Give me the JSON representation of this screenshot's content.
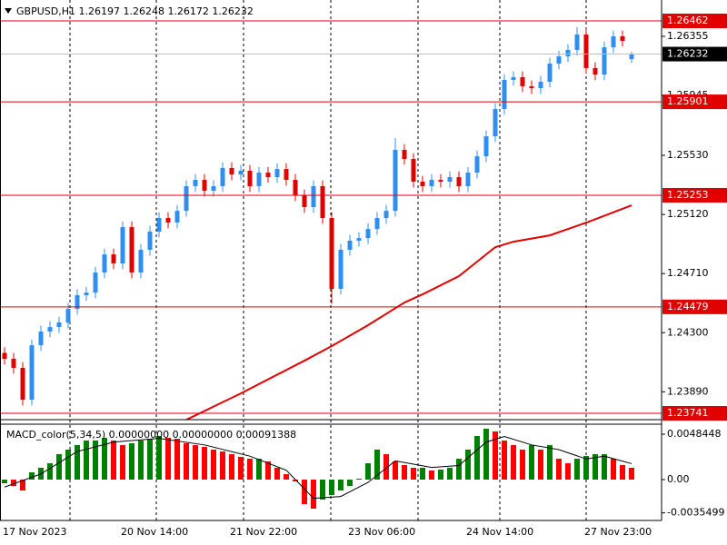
{
  "chart_data": [
    {
      "type": "candlestick",
      "title": "GBPUSD,H1  1.26197 1.26248 1.26172 1.26232",
      "categories": [
        "17 Nov 2023",
        null,
        null,
        null,
        null,
        null,
        null,
        null,
        null,
        null,
        null,
        null,
        null,
        "20 Nov 14:00",
        null,
        null,
        null,
        null,
        null,
        null,
        null,
        null,
        null,
        null,
        null,
        "21 Nov 22:00",
        null,
        null,
        null,
        null,
        null,
        null,
        null,
        null,
        null,
        null,
        null,
        null,
        "23 Nov 06:00",
        null,
        null,
        null,
        null,
        null,
        null,
        null,
        null,
        null,
        null,
        null,
        null,
        "24 Nov 14:00",
        null,
        null,
        null,
        null,
        null,
        null,
        null,
        null,
        null,
        null,
        null,
        null,
        "27 Nov 23:00",
        null,
        null,
        null,
        null,
        null
      ],
      "open": [
        1.2416,
        1.24119,
        1.24056,
        1.23835,
        1.24213,
        1.24308,
        1.24339,
        1.24371,
        1.24465,
        1.2456,
        1.24578,
        1.24717,
        1.24843,
        1.2478,
        1.25032,
        1.24717,
        1.24875,
        1.25001,
        1.25095,
        1.25064,
        1.25145,
        1.25316,
        1.2536,
        1.25284,
        1.25316,
        1.25442,
        1.25397,
        1.25423,
        1.25316,
        1.2541,
        1.25379,
        1.25435,
        1.2536,
        1.25253,
        1.25171,
        1.25316,
        1.25095,
        1.24604,
        1.24875,
        1.24938,
        1.24956,
        1.25019,
        1.25095,
        1.25145,
        1.25568,
        1.25505,
        1.25347,
        1.25316,
        1.2536,
        1.25347,
        1.25379,
        1.25316,
        1.2541,
        1.25523,
        1.25662,
        1.25851,
        1.26053,
        1.26072,
        1.26009,
        1.25996,
        1.2604,
        1.26166,
        1.26216,
        1.26261,
        1.26368,
        1.26135,
        1.2609,
        1.26279,
        1.26355,
        1.26197
      ],
      "high": [
        1.242,
        1.24159,
        1.24096,
        1.24253,
        1.24348,
        1.24379,
        1.24411,
        1.24505,
        1.246,
        1.24618,
        1.24757,
        1.24883,
        1.24883,
        1.25072,
        1.25072,
        1.24915,
        1.25041,
        1.25135,
        1.25135,
        1.25185,
        1.25356,
        1.254,
        1.254,
        1.25356,
        1.25482,
        1.25482,
        1.25463,
        1.25463,
        1.2545,
        1.2545,
        1.25475,
        1.25475,
        1.254,
        1.25293,
        1.25356,
        1.25356,
        1.25135,
        1.24915,
        1.24978,
        1.24996,
        1.25059,
        1.25135,
        1.25185,
        1.2565,
        1.25608,
        1.25545,
        1.25387,
        1.254,
        1.254,
        1.25419,
        1.25419,
        1.2545,
        1.25563,
        1.25702,
        1.25891,
        1.26093,
        1.26112,
        1.26112,
        1.26049,
        1.2608,
        1.26206,
        1.26256,
        1.26301,
        1.2642,
        1.26408,
        1.26175,
        1.26319,
        1.26395,
        1.26395,
        1.26248
      ],
      "low": [
        1.24079,
        1.24016,
        1.23795,
        1.23795,
        1.24173,
        1.24268,
        1.24299,
        1.24331,
        1.24425,
        1.2452,
        1.24538,
        1.24677,
        1.2474,
        1.2474,
        1.24677,
        1.24677,
        1.24835,
        1.24961,
        1.25024,
        1.25024,
        1.25105,
        1.25276,
        1.25244,
        1.25244,
        1.25276,
        1.25357,
        1.25357,
        1.25276,
        1.25276,
        1.25339,
        1.25339,
        1.2532,
        1.25213,
        1.25131,
        1.25131,
        1.25055,
        1.245,
        1.24564,
        1.24835,
        1.24898,
        1.24916,
        1.24979,
        1.25055,
        1.25105,
        1.25465,
        1.25307,
        1.25276,
        1.25276,
        1.25307,
        1.25307,
        1.25276,
        1.25276,
        1.2537,
        1.25483,
        1.25622,
        1.25811,
        1.26013,
        1.25969,
        1.25956,
        1.25956,
        1.26,
        1.26126,
        1.26176,
        1.26221,
        1.26095,
        1.2605,
        1.2605,
        1.26239,
        1.26284,
        1.26172
      ],
      "close": [
        1.24119,
        1.24056,
        1.23835,
        1.24213,
        1.24308,
        1.24339,
        1.24371,
        1.24465,
        1.2456,
        1.24578,
        1.24717,
        1.24843,
        1.2478,
        1.25032,
        1.24717,
        1.24875,
        1.25001,
        1.25095,
        1.25064,
        1.25145,
        1.25316,
        1.2536,
        1.25284,
        1.25316,
        1.25442,
        1.25397,
        1.25423,
        1.25316,
        1.2541,
        1.25379,
        1.25435,
        1.2536,
        1.25253,
        1.25171,
        1.25316,
        1.25095,
        1.24604,
        1.24875,
        1.24938,
        1.24956,
        1.25019,
        1.25095,
        1.25145,
        1.25568,
        1.25505,
        1.25347,
        1.25316,
        1.2536,
        1.25347,
        1.25379,
        1.25316,
        1.2541,
        1.25523,
        1.25662,
        1.25851,
        1.26053,
        1.26072,
        1.26009,
        1.25996,
        1.2604,
        1.26166,
        1.26216,
        1.26261,
        1.26368,
        1.26135,
        1.2609,
        1.26279,
        1.26355,
        1.26324,
        1.26232
      ],
      "up_color": "#2f8ff0",
      "down_color": "#e00000",
      "ma": {
        "color": "#e00000",
        "x": [
          20,
          26,
          33,
          36,
          40,
          44,
          46,
          50,
          54,
          56,
          60,
          64,
          69
        ],
        "values": [
          1.23696,
          1.23879,
          1.24106,
          1.24207,
          1.24352,
          1.24509,
          1.24566,
          1.24692,
          1.24893,
          1.24931,
          1.24975,
          1.25063,
          1.25183
        ]
      },
      "levels": [
        1.26462,
        1.25901,
        1.25253,
        1.24479,
        1.23741
      ],
      "level_color": "#e00000",
      "current_price": 1.26232,
      "ylim": [
        1.23697,
        1.26607
      ],
      "yticks": [
        {
          "value": 1.2389,
          "label": "1.23890"
        },
        {
          "value": 1.243,
          "label": "1.24300"
        },
        {
          "value": 1.2471,
          "label": "1.24710"
        },
        {
          "value": 1.2512,
          "label": "1.25120"
        },
        {
          "value": 1.2553,
          "label": "1.25530"
        },
        1.25945,
        1.26355
      ]
    },
    {
      "type": "macd",
      "title": "MACD_color(5,34,5) 0.00000000 0.00000000 0.00091388",
      "values": [
        -0.00039,
        -0.00068,
        -0.00116,
        0.00078,
        0.00126,
        0.00174,
        0.00271,
        0.0032,
        0.00368,
        0.00417,
        0.00417,
        0.00446,
        0.00417,
        0.00368,
        0.00388,
        0.00417,
        0.00436,
        0.00465,
        0.00446,
        0.00436,
        0.00388,
        0.00368,
        0.00349,
        0.0032,
        0.003,
        0.00271,
        0.00242,
        0.00223,
        0.00223,
        0.00194,
        0.00126,
        0.00058,
        -0.00019,
        -0.00262,
        -0.0031,
        -0.00213,
        -0.00165,
        -0.00116,
        -0.00068,
        0.0001,
        0.00174,
        0.0032,
        0.00271,
        0.00194,
        0.00155,
        0.00126,
        0.00126,
        0.00097,
        0.00107,
        0.00126,
        0.00223,
        0.0032,
        0.00465,
        0.00543,
        0.00514,
        0.00417,
        0.00368,
        0.0032,
        0.00368,
        0.0032,
        0.00368,
        0.00223,
        0.00174,
        0.00223,
        0.00252,
        0.00271,
        0.00271,
        0.00223,
        0.00155,
        0.00126
      ],
      "up_color": "#008000",
      "down_color": "#ff0000",
      "signal": {
        "color": "#000000",
        "x": [
          0,
          4,
          8,
          12,
          17,
          22,
          27,
          31,
          34,
          37,
          40,
          43,
          47,
          50,
          53,
          55,
          58,
          61,
          64,
          66,
          69
        ],
        "values": [
          -0.0008,
          0.0006,
          0.003,
          0.004,
          0.0044,
          0.0037,
          0.0025,
          0.001,
          -0.002,
          -0.0018,
          -0.0003,
          0.002,
          0.0013,
          0.0015,
          0.004,
          0.0046,
          0.0037,
          0.0032,
          0.0022,
          0.0025,
          0.0017
        ]
      },
      "ylim": [
        -0.00436,
        0.00591
      ],
      "yticks": [
        -0.0035499,
        {
          "value": 0,
          "label": "0.00"
        },
        0.0048448
      ]
    }
  ]
}
